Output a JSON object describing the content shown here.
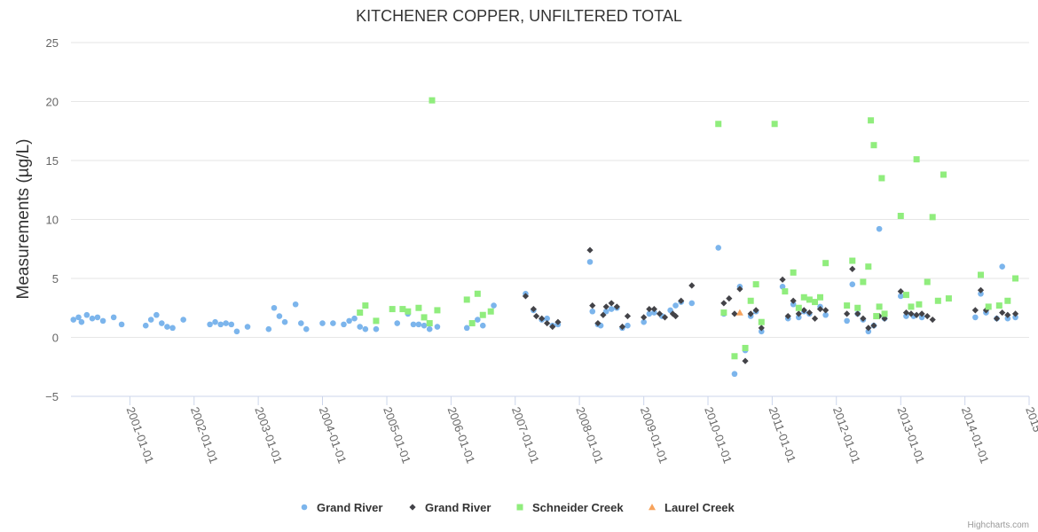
{
  "chart_data": {
    "type": "scatter",
    "title": "KITCHENER COPPER, UNFILTERED TOTAL",
    "ylabel": "Measurements (µg/L)",
    "xlabel": "",
    "ylim": [
      -5,
      25
    ],
    "yticks": [
      -5,
      0,
      5,
      10,
      15,
      20,
      25
    ],
    "xlim": [
      "2000-02-01",
      "2015-01-01"
    ],
    "xticks": [
      "2001-01-01",
      "2002-01-01",
      "2003-01-01",
      "2004-01-01",
      "2005-01-01",
      "2006-01-01",
      "2007-01-01",
      "2008-01-01",
      "2009-01-01",
      "2010-01-01",
      "2011-01-01",
      "2012-01-01",
      "2013-01-01",
      "2014-01-01",
      "2015-01-01"
    ],
    "xtick_labels": [
      "2001-01-01",
      "2002-01-01",
      "2003-01-01",
      "2004-01-01",
      "2005-01-01",
      "2006-01-01",
      "2007-01-01",
      "2008-01-01",
      "2009-01-01",
      "2010-01-01",
      "2011-01-01",
      "2012-01-01",
      "2013-01-01",
      "2014-01-01",
      "2015"
    ],
    "grid": true,
    "legend_position": "bottom-center",
    "credits": "Highcharts.com",
    "series": [
      {
        "name": "Grand River",
        "marker": "circle",
        "color": "#7cb5ec",
        "points": [
          [
            "2000-02-15",
            1.5
          ],
          [
            "2000-03-15",
            1.7
          ],
          [
            "2000-04-01",
            1.3
          ],
          [
            "2000-05-01",
            1.9
          ],
          [
            "2000-06-01",
            1.6
          ],
          [
            "2000-07-01",
            1.7
          ],
          [
            "2000-08-01",
            1.4
          ],
          [
            "2000-10-01",
            1.7
          ],
          [
            "2000-11-15",
            1.1
          ],
          [
            "2001-04-01",
            1.0
          ],
          [
            "2001-05-01",
            1.5
          ],
          [
            "2001-06-01",
            1.9
          ],
          [
            "2001-07-01",
            1.2
          ],
          [
            "2001-08-01",
            0.9
          ],
          [
            "2001-09-01",
            0.8
          ],
          [
            "2001-11-01",
            1.5
          ],
          [
            "2002-04-01",
            1.1
          ],
          [
            "2002-05-01",
            1.3
          ],
          [
            "2002-06-01",
            1.1
          ],
          [
            "2002-07-01",
            1.2
          ],
          [
            "2002-08-01",
            1.1
          ],
          [
            "2002-09-01",
            0.5
          ],
          [
            "2002-11-01",
            0.9
          ],
          [
            "2003-03-01",
            0.7
          ],
          [
            "2003-04-01",
            2.5
          ],
          [
            "2003-05-01",
            1.8
          ],
          [
            "2003-06-01",
            1.3
          ],
          [
            "2003-08-01",
            2.8
          ],
          [
            "2003-09-01",
            1.2
          ],
          [
            "2003-10-01",
            0.7
          ],
          [
            "2004-01-01",
            1.2
          ],
          [
            "2004-03-01",
            1.2
          ],
          [
            "2004-05-01",
            1.1
          ],
          [
            "2004-06-01",
            1.4
          ],
          [
            "2004-07-01",
            1.6
          ],
          [
            "2004-08-01",
            0.9
          ],
          [
            "2004-09-01",
            0.7
          ],
          [
            "2004-11-01",
            0.7
          ],
          [
            "2005-03-01",
            1.2
          ],
          [
            "2005-05-01",
            2.0
          ],
          [
            "2005-06-01",
            1.1
          ],
          [
            "2005-07-01",
            1.1
          ],
          [
            "2005-08-01",
            1.0
          ],
          [
            "2005-09-01",
            0.7
          ],
          [
            "2005-10-15",
            0.9
          ],
          [
            "2006-04-01",
            0.8
          ],
          [
            "2006-06-01",
            1.5
          ],
          [
            "2006-07-01",
            1.0
          ],
          [
            "2006-09-01",
            2.7
          ],
          [
            "2007-03-01",
            3.7
          ],
          [
            "2007-04-15",
            2.3
          ],
          [
            "2007-06-01",
            1.5
          ],
          [
            "2007-07-01",
            1.6
          ],
          [
            "2007-08-01",
            1.0
          ],
          [
            "2007-09-01",
            1.1
          ],
          [
            "2008-03-01",
            6.4
          ],
          [
            "2008-03-15",
            2.2
          ],
          [
            "2008-04-15",
            1.1
          ],
          [
            "2008-05-01",
            1.0
          ],
          [
            "2008-06-01",
            2.2
          ],
          [
            "2008-07-01",
            2.4
          ],
          [
            "2008-08-01",
            2.5
          ],
          [
            "2008-09-01",
            0.8
          ],
          [
            "2008-10-01",
            1.0
          ],
          [
            "2009-01-01",
            1.3
          ],
          [
            "2009-02-01",
            2.0
          ],
          [
            "2009-03-01",
            2.1
          ],
          [
            "2009-04-15",
            1.8
          ],
          [
            "2009-06-01",
            2.3
          ],
          [
            "2009-07-01",
            2.7
          ],
          [
            "2009-08-01",
            3.0
          ],
          [
            "2009-10-01",
            2.9
          ],
          [
            "2010-03-01",
            7.6
          ],
          [
            "2010-04-01",
            2.0
          ],
          [
            "2010-06-01",
            -3.1
          ],
          [
            "2010-07-01",
            4.3
          ],
          [
            "2010-08-01",
            -1.1
          ],
          [
            "2010-09-01",
            1.8
          ],
          [
            "2010-10-01",
            2.2
          ],
          [
            "2010-11-01",
            0.5
          ],
          [
            "2011-03-01",
            4.3
          ],
          [
            "2011-04-01",
            1.6
          ],
          [
            "2011-05-01",
            2.8
          ],
          [
            "2011-06-01",
            1.7
          ],
          [
            "2011-07-01",
            2.2
          ],
          [
            "2011-08-01",
            2.0
          ],
          [
            "2011-10-01",
            2.6
          ],
          [
            "2011-11-01",
            1.9
          ],
          [
            "2012-03-01",
            1.4
          ],
          [
            "2012-04-01",
            4.5
          ],
          [
            "2012-05-01",
            2.0
          ],
          [
            "2012-06-01",
            1.5
          ],
          [
            "2012-07-01",
            0.5
          ],
          [
            "2012-08-01",
            1.0
          ],
          [
            "2012-09-01",
            9.2
          ],
          [
            "2012-10-01",
            1.6
          ],
          [
            "2013-01-01",
            3.5
          ],
          [
            "2013-02-01",
            1.8
          ],
          [
            "2013-03-15",
            1.8
          ],
          [
            "2013-05-01",
            1.7
          ],
          [
            "2014-03-01",
            1.7
          ],
          [
            "2014-04-01",
            3.7
          ],
          [
            "2014-05-01",
            2.1
          ],
          [
            "2014-07-01",
            1.6
          ],
          [
            "2014-08-01",
            6.0
          ],
          [
            "2014-09-01",
            1.6
          ],
          [
            "2014-10-15",
            1.7
          ]
        ]
      },
      {
        "name": "Grand River",
        "marker": "diamond",
        "color": "#434348",
        "points": [
          [
            "2007-03-01",
            3.5
          ],
          [
            "2007-04-15",
            2.4
          ],
          [
            "2007-05-01",
            1.8
          ],
          [
            "2007-06-01",
            1.6
          ],
          [
            "2007-07-01",
            1.2
          ],
          [
            "2007-08-01",
            0.9
          ],
          [
            "2007-09-01",
            1.3
          ],
          [
            "2008-03-01",
            7.4
          ],
          [
            "2008-03-15",
            2.7
          ],
          [
            "2008-04-15",
            1.2
          ],
          [
            "2008-05-15",
            1.9
          ],
          [
            "2008-06-01",
            2.6
          ],
          [
            "2008-07-01",
            2.9
          ],
          [
            "2008-08-01",
            2.6
          ],
          [
            "2008-09-01",
            0.9
          ],
          [
            "2008-10-01",
            1.8
          ],
          [
            "2009-01-01",
            1.7
          ],
          [
            "2009-02-01",
            2.4
          ],
          [
            "2009-03-01",
            2.4
          ],
          [
            "2009-04-01",
            2.0
          ],
          [
            "2009-05-01",
            1.7
          ],
          [
            "2009-06-15",
            2.0
          ],
          [
            "2009-07-01",
            1.8
          ],
          [
            "2009-08-01",
            3.1
          ],
          [
            "2009-10-01",
            4.4
          ],
          [
            "2010-04-01",
            2.9
          ],
          [
            "2010-05-01",
            3.3
          ],
          [
            "2010-06-01",
            2.0
          ],
          [
            "2010-07-01",
            4.1
          ],
          [
            "2010-08-01",
            -2.0
          ],
          [
            "2010-09-01",
            2.0
          ],
          [
            "2010-10-01",
            2.3
          ],
          [
            "2010-11-01",
            0.8
          ],
          [
            "2011-03-01",
            4.9
          ],
          [
            "2011-04-01",
            1.8
          ],
          [
            "2011-05-01",
            3.1
          ],
          [
            "2011-06-01",
            2.0
          ],
          [
            "2011-07-01",
            2.3
          ],
          [
            "2011-08-01",
            2.1
          ],
          [
            "2011-09-01",
            1.6
          ],
          [
            "2011-10-01",
            2.4
          ],
          [
            "2011-11-01",
            2.3
          ],
          [
            "2012-03-01",
            2.0
          ],
          [
            "2012-04-01",
            5.8
          ],
          [
            "2012-05-01",
            2.0
          ],
          [
            "2012-06-01",
            1.6
          ],
          [
            "2012-07-01",
            0.8
          ],
          [
            "2012-08-01",
            1.0
          ],
          [
            "2012-09-01",
            1.8
          ],
          [
            "2012-10-01",
            1.6
          ],
          [
            "2013-01-01",
            3.9
          ],
          [
            "2013-02-01",
            2.1
          ],
          [
            "2013-03-01",
            2.0
          ],
          [
            "2013-04-01",
            1.9
          ],
          [
            "2013-05-01",
            2.0
          ],
          [
            "2013-06-01",
            1.8
          ],
          [
            "2013-07-01",
            1.5
          ],
          [
            "2014-03-01",
            2.3
          ],
          [
            "2014-04-01",
            4.0
          ],
          [
            "2014-05-01",
            2.3
          ],
          [
            "2014-07-01",
            1.6
          ],
          [
            "2014-08-01",
            2.1
          ],
          [
            "2014-09-01",
            1.9
          ],
          [
            "2014-10-15",
            2.0
          ]
        ]
      },
      {
        "name": "Schneider Creek",
        "marker": "square",
        "color": "#90ed7d",
        "points": [
          [
            "2004-08-01",
            2.1
          ],
          [
            "2004-09-01",
            2.7
          ],
          [
            "2004-11-01",
            1.4
          ],
          [
            "2005-02-01",
            2.4
          ],
          [
            "2005-04-01",
            2.4
          ],
          [
            "2005-05-01",
            2.2
          ],
          [
            "2005-07-01",
            2.5
          ],
          [
            "2005-08-01",
            1.7
          ],
          [
            "2005-09-01",
            1.2
          ],
          [
            "2005-09-15",
            20.1
          ],
          [
            "2005-10-15",
            2.3
          ],
          [
            "2006-04-01",
            3.2
          ],
          [
            "2006-05-01",
            1.2
          ],
          [
            "2006-06-01",
            3.7
          ],
          [
            "2006-07-01",
            1.9
          ],
          [
            "2006-08-15",
            2.2
          ],
          [
            "2010-03-01",
            18.1
          ],
          [
            "2010-04-01",
            2.1
          ],
          [
            "2010-06-01",
            -1.6
          ],
          [
            "2010-08-01",
            -0.9
          ],
          [
            "2010-09-01",
            3.1
          ],
          [
            "2010-10-01",
            4.5
          ],
          [
            "2010-11-01",
            1.3
          ],
          [
            "2011-01-15",
            18.1
          ],
          [
            "2011-03-15",
            3.9
          ],
          [
            "2011-05-01",
            5.5
          ],
          [
            "2011-06-01",
            2.5
          ],
          [
            "2011-07-01",
            3.4
          ],
          [
            "2011-08-01",
            3.2
          ],
          [
            "2011-09-01",
            3.0
          ],
          [
            "2011-10-01",
            3.4
          ],
          [
            "2011-11-01",
            6.3
          ],
          [
            "2012-03-01",
            2.7
          ],
          [
            "2012-04-01",
            6.5
          ],
          [
            "2012-05-01",
            2.5
          ],
          [
            "2012-06-01",
            4.7
          ],
          [
            "2012-07-01",
            6.0
          ],
          [
            "2012-07-15",
            18.4
          ],
          [
            "2012-08-01",
            16.3
          ],
          [
            "2012-08-15",
            1.8
          ],
          [
            "2012-09-01",
            2.6
          ],
          [
            "2012-09-15",
            13.5
          ],
          [
            "2012-10-01",
            2.0
          ],
          [
            "2013-01-01",
            10.3
          ],
          [
            "2013-02-01",
            3.6
          ],
          [
            "2013-03-01",
            2.6
          ],
          [
            "2013-04-01",
            15.1
          ],
          [
            "2013-04-15",
            2.8
          ],
          [
            "2013-06-01",
            4.7
          ],
          [
            "2013-07-01",
            10.2
          ],
          [
            "2013-08-01",
            3.1
          ],
          [
            "2013-09-01",
            13.8
          ],
          [
            "2013-10-01",
            3.3
          ],
          [
            "2014-04-01",
            5.3
          ],
          [
            "2014-05-15",
            2.6
          ],
          [
            "2014-07-15",
            2.7
          ],
          [
            "2014-09-01",
            3.1
          ],
          [
            "2014-10-15",
            5.0
          ]
        ]
      },
      {
        "name": "Laurel Creek",
        "marker": "triangle",
        "color": "#f7a35c",
        "points": [
          [
            "2010-07-01",
            2.1
          ]
        ]
      }
    ]
  }
}
